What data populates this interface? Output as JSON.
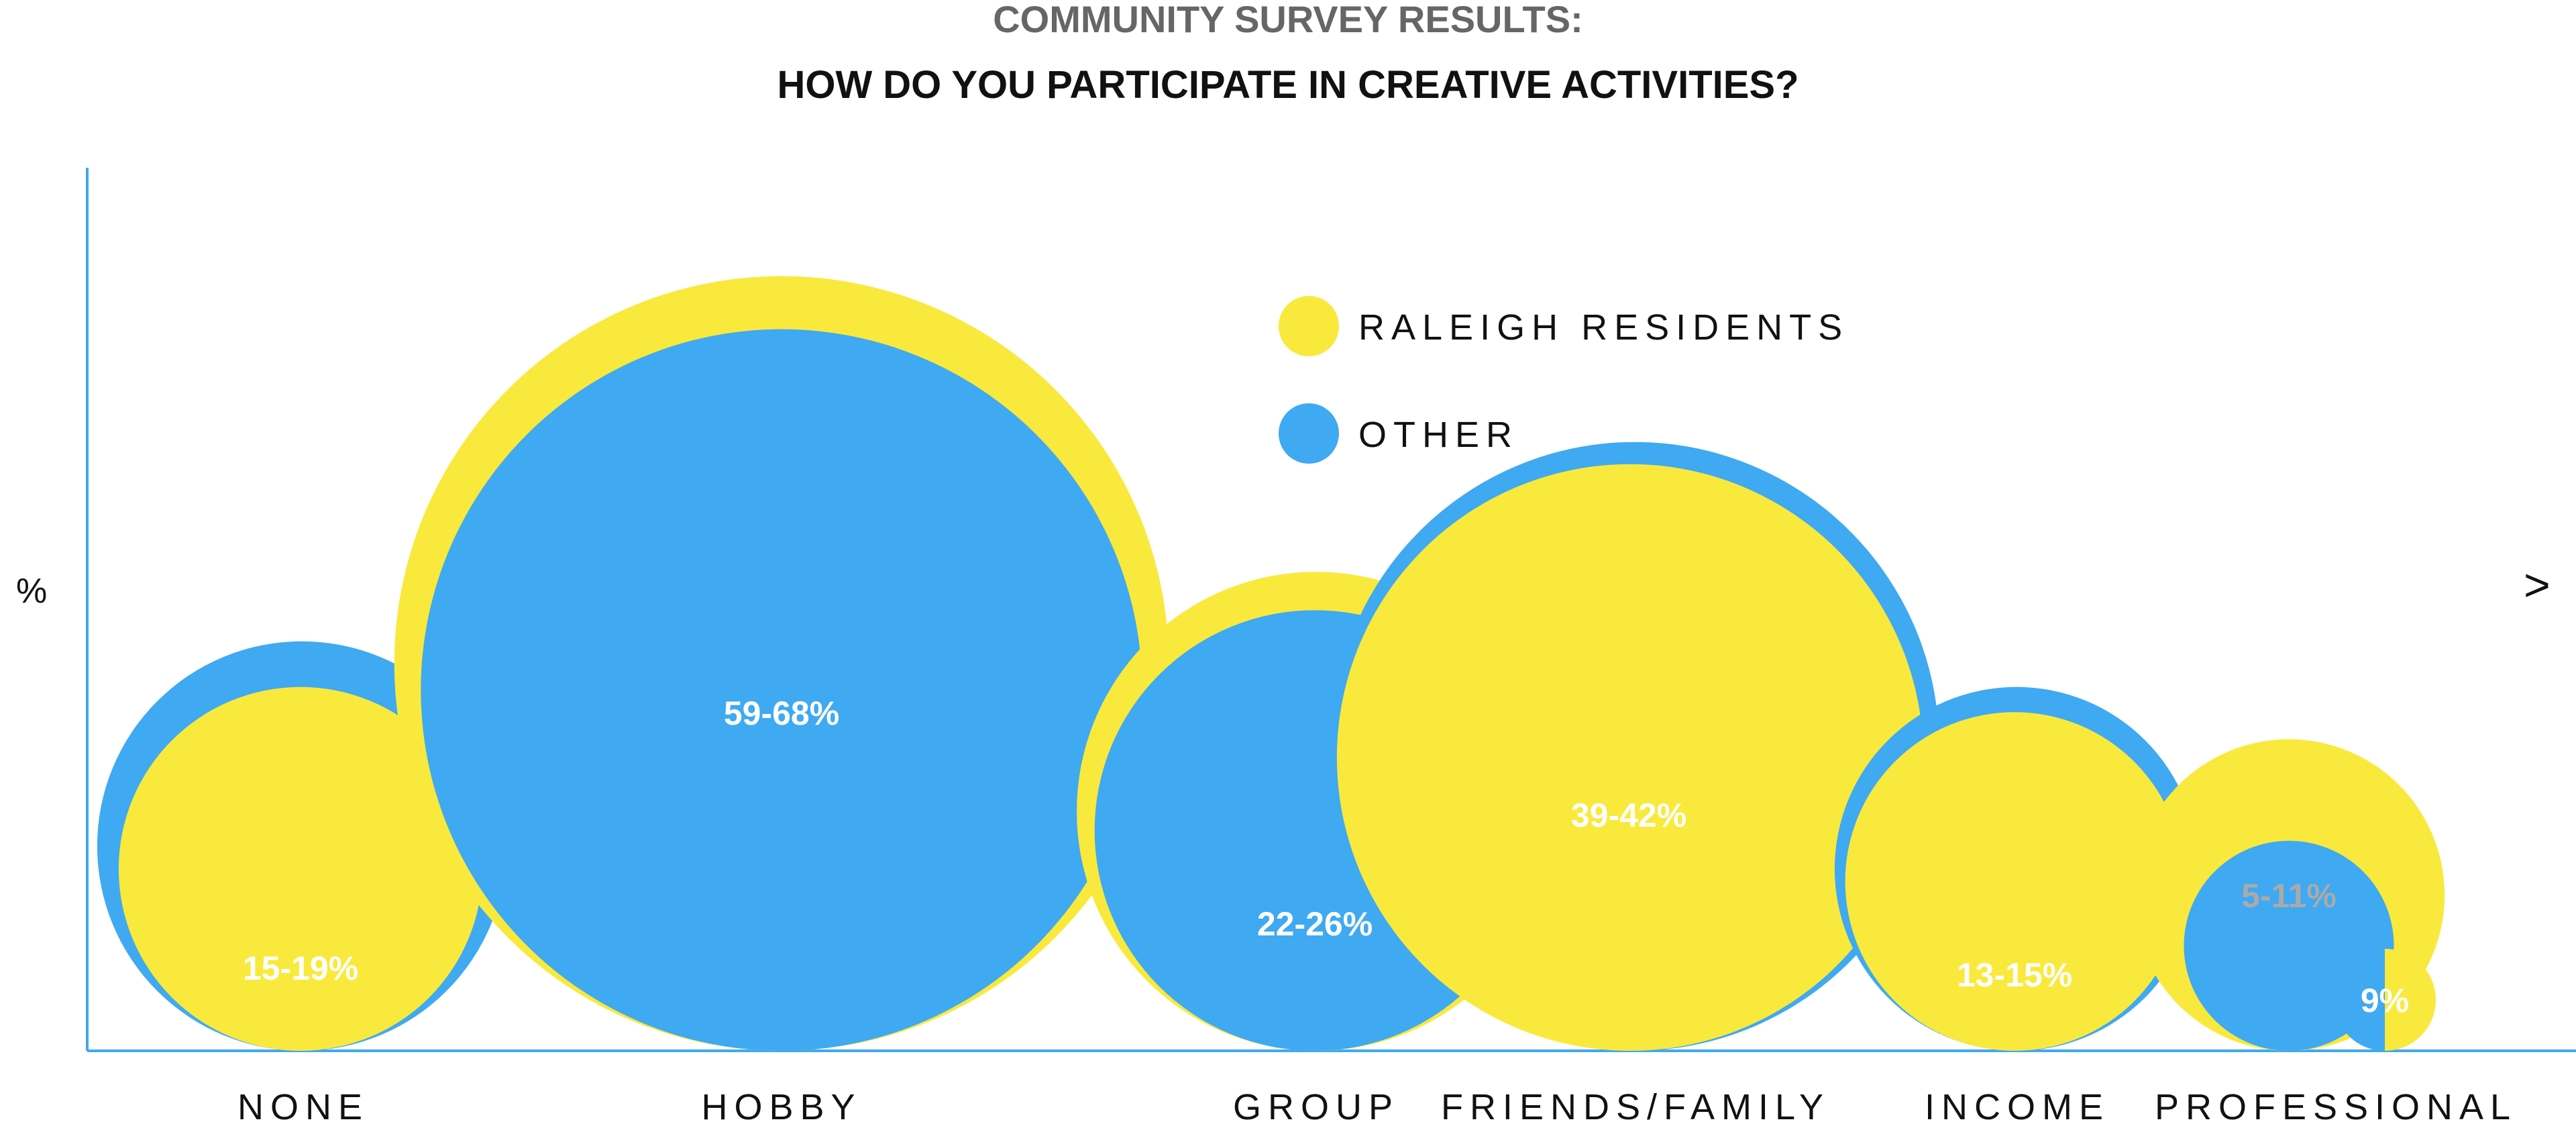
{
  "chart_data": {
    "type": "bubble",
    "title": "COMMUNITY SURVEY RESULTS:",
    "subtitle": "HOW DO YOU PARTICIPATE IN CREATIVE ACTIVITIES?",
    "y_unit_label": "%",
    "next_label": ">",
    "colors": {
      "raleigh": "#f9e93c",
      "other": "#3fa9f2",
      "axis": "#3fa9f2"
    },
    "legend": [
      {
        "name": "RALEIGH RESIDENTS",
        "color": "#f9e93c"
      },
      {
        "name": "OTHER",
        "color": "#3fa9f2"
      }
    ],
    "categories": [
      "NONE",
      "HOBBY",
      "GROUP",
      "FRIENDS/FAMILY",
      "INCOME",
      "PROFESSIONAL"
    ],
    "series": [
      {
        "name": "RALEIGH RESIDENTS",
        "values": [
          15,
          68,
          26,
          39,
          13,
          11
        ]
      },
      {
        "name": "OTHER",
        "values": [
          19,
          59,
          22,
          42,
          15,
          5
        ]
      }
    ],
    "data_labels": [
      "15-19%",
      "59-68%",
      "22-26%",
      "39-42%",
      "13-15%",
      "5-11%"
    ],
    "extra_labels": {
      "professional_split": "9%"
    }
  }
}
